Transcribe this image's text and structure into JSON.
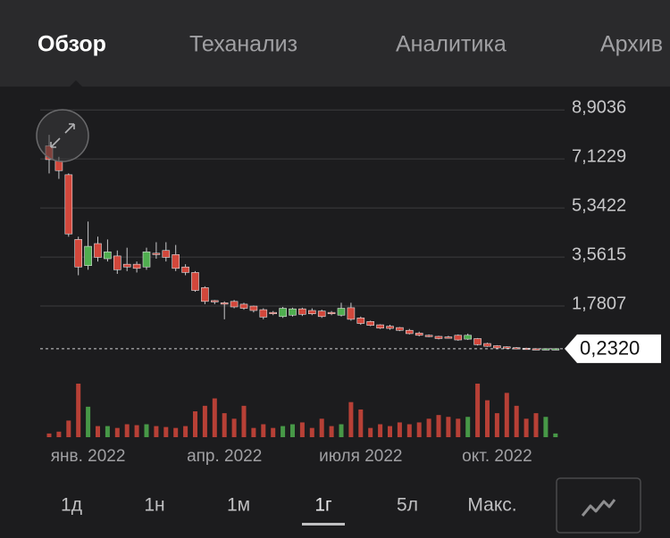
{
  "tabs": [
    "Обзор",
    "Теханализ",
    "Аналитика",
    "Архив"
  ],
  "chart_data": {
    "type": "candlestick",
    "categories": [
      null,
      null,
      null,
      null,
      "янв. 2022",
      null,
      null,
      null,
      null,
      null,
      null,
      null,
      null,
      null,
      null,
      null,
      null,
      null,
      "апр. 2022",
      null,
      null,
      null,
      null,
      null,
      null,
      null,
      null,
      null,
      null,
      null,
      null,
      null,
      "июля 2022",
      null,
      null,
      null,
      null,
      null,
      null,
      null,
      null,
      null,
      null,
      null,
      null,
      null,
      "окт. 2022",
      null,
      null,
      null,
      null,
      null,
      null
    ],
    "open": [
      7.6,
      7.05,
      6.55,
      4.2,
      3.25,
      4.05,
      3.5,
      3.6,
      3.3,
      3.3,
      3.2,
      3.7,
      3.8,
      3.65,
      3.2,
      3.0,
      2.45,
      1.98,
      1.9,
      1.95,
      1.85,
      1.78,
      1.65,
      1.55,
      1.4,
      1.45,
      1.68,
      1.62,
      1.6,
      1.55,
      1.45,
      1.72,
      1.35,
      1.22,
      1.1,
      1.05,
      1.0,
      0.9,
      0.8,
      0.72,
      0.68,
      0.66,
      0.72,
      0.58,
      0.6,
      0.42,
      0.34,
      0.3,
      0.27,
      0.25,
      0.23,
      0.22,
      0.23
    ],
    "high": [
      8.0,
      7.2,
      6.6,
      4.3,
      4.85,
      4.3,
      4.2,
      3.8,
      3.9,
      3.4,
      3.9,
      4.1,
      4.1,
      4.0,
      3.3,
      3.05,
      2.5,
      2.0,
      1.95,
      2.0,
      1.9,
      1.8,
      1.7,
      1.6,
      1.75,
      1.72,
      1.72,
      1.7,
      1.65,
      1.6,
      1.9,
      1.9,
      1.4,
      1.25,
      1.12,
      1.1,
      1.02,
      0.95,
      0.85,
      0.75,
      0.7,
      0.7,
      0.75,
      0.78,
      0.62,
      0.45,
      0.36,
      0.32,
      0.29,
      0.27,
      0.25,
      0.24,
      0.24
    ],
    "low": [
      6.6,
      6.4,
      4.3,
      2.9,
      3.1,
      3.4,
      3.4,
      2.95,
      3.05,
      3.0,
      3.1,
      3.5,
      3.4,
      3.05,
      2.9,
      2.3,
      1.85,
      1.85,
      1.3,
      1.7,
      1.65,
      1.55,
      1.3,
      1.45,
      1.35,
      1.4,
      1.42,
      1.45,
      1.35,
      1.45,
      1.4,
      1.25,
      1.1,
      1.05,
      0.95,
      0.92,
      0.87,
      0.75,
      0.68,
      0.65,
      0.57,
      0.6,
      0.52,
      0.55,
      0.35,
      0.3,
      0.24,
      0.25,
      0.23,
      0.21,
      0.2,
      0.2,
      0.21
    ],
    "close": [
      7.1,
      6.7,
      4.4,
      3.2,
      3.95,
      3.55,
      3.75,
      3.1,
      3.2,
      3.15,
      3.75,
      3.65,
      3.55,
      3.15,
      3.0,
      2.35,
      1.95,
      1.95,
      1.85,
      1.75,
      1.7,
      1.62,
      1.38,
      1.52,
      1.7,
      1.68,
      1.48,
      1.5,
      1.4,
      1.53,
      1.7,
      1.3,
      1.15,
      1.08,
      0.98,
      0.97,
      0.9,
      0.78,
      0.72,
      0.7,
      0.6,
      0.64,
      0.55,
      0.72,
      0.38,
      0.32,
      0.26,
      0.28,
      0.25,
      0.22,
      0.21,
      0.232,
      0.232
    ],
    "volumes": [
      4,
      6,
      18,
      58,
      33,
      12,
      12,
      10,
      14,
      13,
      14,
      12,
      11,
      10,
      12,
      28,
      34,
      42,
      26,
      20,
      34,
      10,
      14,
      10,
      12,
      14,
      16,
      10,
      20,
      12,
      14,
      38,
      30,
      10,
      14,
      12,
      16,
      14,
      16,
      20,
      24,
      22,
      20,
      22,
      58,
      40,
      26,
      48,
      34,
      20,
      26,
      22,
      4
    ],
    "up_color": "#4fae4f",
    "down_color": "#d2473b",
    "ylim": [
      0,
      9.3
    ],
    "yticks": [
      {
        "value": 1.7807,
        "label": "1,7807"
      },
      {
        "value": 3.5615,
        "label": "3,5615"
      },
      {
        "value": 5.3422,
        "label": "5,3422"
      },
      {
        "value": 7.1229,
        "label": "7,1229"
      },
      {
        "value": 8.9036,
        "label": "8,9036"
      }
    ],
    "grid": true,
    "last_price": {
      "value": 0.232,
      "label": "0,2320"
    }
  },
  "ranges": [
    "1д",
    "1н",
    "1м",
    "1г",
    "5л",
    "Макс."
  ],
  "selected_range": 3
}
